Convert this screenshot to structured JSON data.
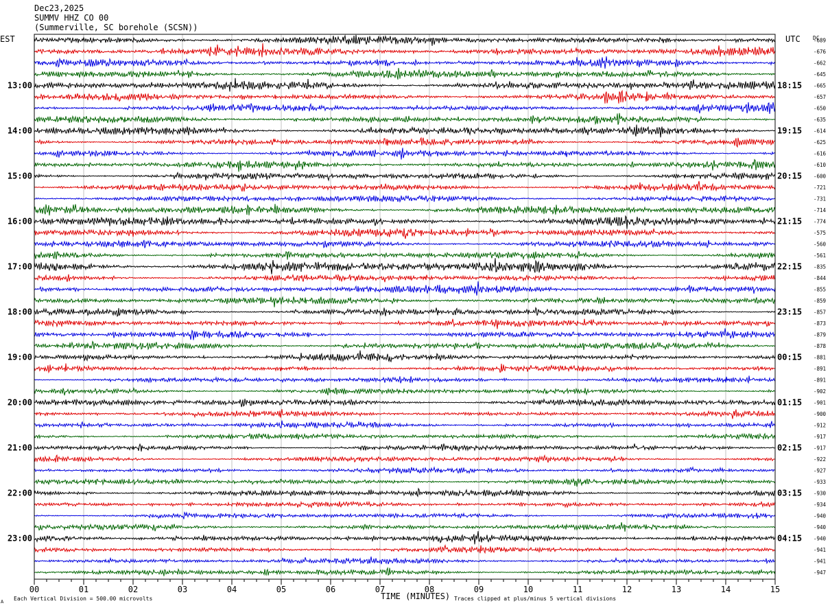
{
  "header": {
    "date": "Dec23,2025",
    "station": "SUMMV HHZ CO 00",
    "location": "(Summerville, SC borehole (SCSN))"
  },
  "labels": {
    "left_timezone": "EST",
    "right_timezone": "UTC",
    "dc_header": "DC"
  },
  "footer": {
    "scale_note": "Each Vertical Division =  500.00 microvolts",
    "clip_note": "Traces clipped at plus/minus 5 vertical divisions",
    "corner_mark": "A"
  },
  "chart_data": {
    "type": "line",
    "xlabel": "TIME (MINUTES)",
    "xlim": [
      0,
      15
    ],
    "x_ticks": [
      "00",
      "01",
      "02",
      "03",
      "04",
      "05",
      "06",
      "07",
      "08",
      "09",
      "10",
      "11",
      "12",
      "13",
      "14",
      "15"
    ],
    "rows_per_hour": 4,
    "minutes_per_row": 15,
    "trace_colors": [
      "#000000",
      "#e00000",
      "#0000e0",
      "#006400"
    ],
    "left_hour_labels": [
      {
        "row": 4,
        "label": "13:00"
      },
      {
        "row": 8,
        "label": "14:00"
      },
      {
        "row": 12,
        "label": "15:00"
      },
      {
        "row": 16,
        "label": "16:00"
      },
      {
        "row": 20,
        "label": "17:00"
      },
      {
        "row": 24,
        "label": "18:00"
      },
      {
        "row": 28,
        "label": "19:00"
      },
      {
        "row": 32,
        "label": "20:00"
      },
      {
        "row": 36,
        "label": "21:00"
      },
      {
        "row": 40,
        "label": "22:00"
      },
      {
        "row": 44,
        "label": "23:00"
      }
    ],
    "right_hour_labels": [
      {
        "row": 4,
        "label": "18:15"
      },
      {
        "row": 8,
        "label": "19:15"
      },
      {
        "row": 12,
        "label": "20:15"
      },
      {
        "row": 16,
        "label": "21:15"
      },
      {
        "row": 20,
        "label": "22:15"
      },
      {
        "row": 24,
        "label": "23:15"
      },
      {
        "row": 28,
        "label": "00:15"
      },
      {
        "row": 32,
        "label": "01:15"
      },
      {
        "row": 36,
        "label": "02:15"
      },
      {
        "row": 40,
        "label": "03:15"
      },
      {
        "row": 44,
        "label": "04:15"
      }
    ],
    "dc_offsets": [
      "-689",
      "-676",
      "-662",
      "-645",
      "-665",
      "-657",
      "-650",
      "-635",
      "-614",
      "-625",
      "-616",
      "-610",
      "-600",
      "-721",
      "-731",
      "-714",
      "-774",
      "-575",
      "-560",
      "-561",
      "-835",
      "-844",
      "-855",
      "-859",
      "-857",
      "-873",
      "-879",
      "-878",
      "-881",
      "-891",
      "-891",
      "-902",
      "-901",
      "-900",
      "-912",
      "-917",
      "-917",
      "-922",
      "-927",
      "-933",
      "-930",
      "-934",
      "-940",
      "-940",
      "-940",
      "-941",
      "-941",
      "-947"
    ],
    "row_amplitudes": [
      6,
      6,
      5,
      6,
      6,
      5,
      5,
      5,
      6,
      5,
      5,
      5,
      5,
      5,
      5,
      6,
      6,
      6,
      5,
      5,
      8,
      5,
      6,
      5,
      5,
      5,
      5,
      5,
      5,
      4,
      4,
      4,
      5,
      4,
      4,
      4,
      4,
      4,
      4,
      4,
      5,
      4,
      4,
      4,
      5,
      4,
      4,
      4
    ]
  }
}
